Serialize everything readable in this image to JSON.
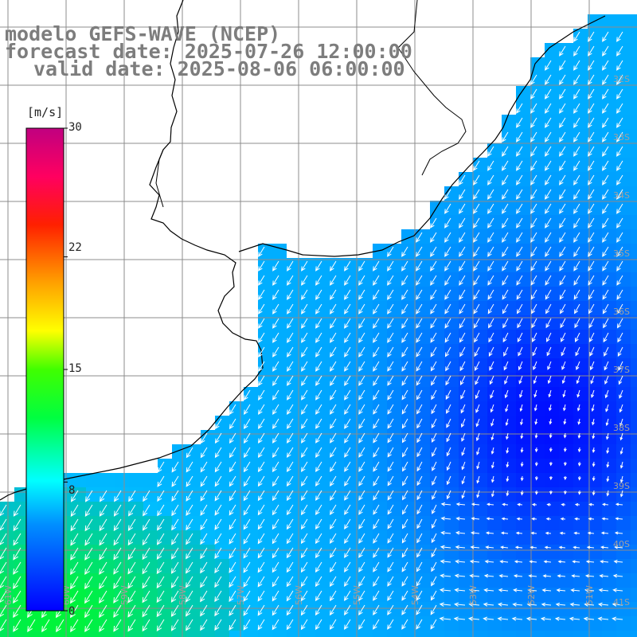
{
  "titles": {
    "line1": "modelo GEFS-WAVE (NCEP)",
    "line2": "forecast date: 2025-07-26 12:00:00",
    "line3": "valid date: 2025-08-06 06:00:00"
  },
  "colorbar": {
    "unit": "[m/s]",
    "ticks": [
      "30",
      "22",
      "15",
      "8",
      "0"
    ],
    "min": 0,
    "max": 30,
    "tick_values": [
      30,
      22,
      15,
      8,
      0
    ],
    "palette": [
      "#0000ff",
      "#00a0ff",
      "#00ffff",
      "#00ff80",
      "#00d000",
      "#80ff00",
      "#ffff00",
      "#ffa000",
      "#ff0000",
      "#ff0080",
      "#c00080"
    ]
  },
  "latitude_labels": [
    "32S",
    "33S",
    "34S",
    "35S",
    "36S",
    "37S",
    "38S",
    "39S",
    "40S",
    "41S"
  ],
  "longitude_labels": [
    "61W",
    "60W",
    "59W",
    "58W",
    "57W",
    "56W",
    "55W",
    "54W",
    "53W",
    "52W",
    "51W"
  ],
  "colors": {
    "land": "#ffffff",
    "coast": "#000000",
    "grid": "#8c8c8c",
    "arrows": "#ffffff",
    "title": "#7d7d7d"
  }
}
